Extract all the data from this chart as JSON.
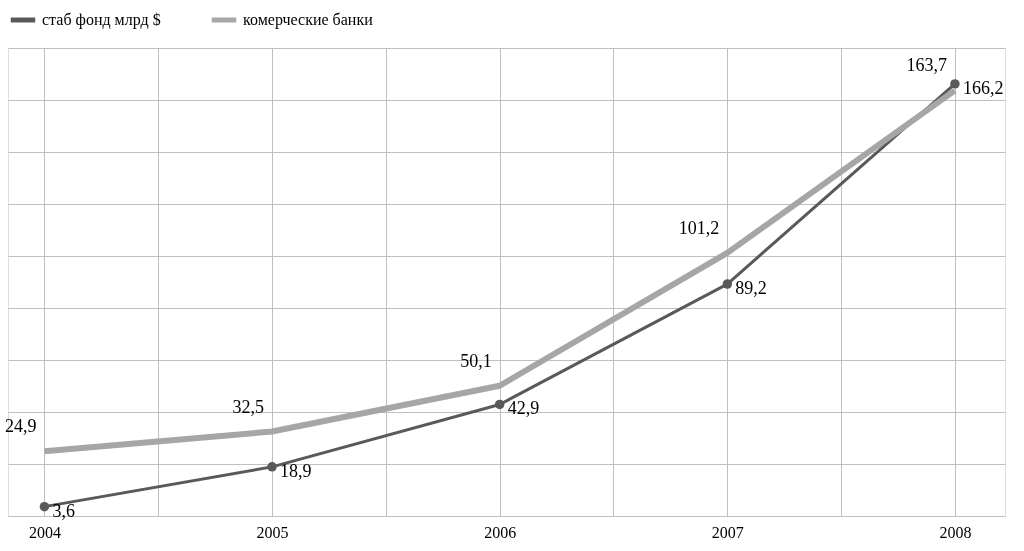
{
  "chart_data": {
    "type": "line",
    "x": [
      2004,
      2005,
      2006,
      2007,
      2008
    ],
    "xlim": [
      2003.84,
      2008.22
    ],
    "xticks": [
      2004,
      {
        "value": 2004.5,
        "label": null
      },
      2005,
      {
        "value": 2005.5,
        "label": null
      },
      2006,
      {
        "value": 2006.5,
        "label": null
      },
      2007,
      {
        "value": 2007.5,
        "label": null
      },
      2008
    ],
    "ylim": [
      0,
      180
    ],
    "yticks": [
      {
        "value": 0,
        "label": null
      },
      {
        "value": 20,
        "label": null
      },
      {
        "value": 40,
        "label": null
      },
      {
        "value": 60,
        "label": null
      },
      {
        "value": 80,
        "label": null
      },
      {
        "value": 100,
        "label": null
      },
      {
        "value": 120,
        "label": null
      },
      {
        "value": 140,
        "label": null
      },
      {
        "value": 160,
        "label": null
      },
      {
        "value": 180,
        "label": null
      }
    ],
    "tick_labels": "x",
    "grid": true,
    "legend": "top",
    "series": [
      {
        "name": "стаб фонд млрд $",
        "color": "#595959",
        "marker": "circle",
        "values": [
          3.6,
          18.9,
          42.9,
          89.2,
          166.2
        ],
        "value_labels": [
          "3,6",
          "18,9",
          "42,9",
          "89,2",
          "166,2"
        ]
      },
      {
        "name": "комерческие банки",
        "color": "#a6a6a6",
        "marker": "none",
        "values": [
          24.9,
          32.5,
          50.1,
          101.2,
          163.7
        ],
        "value_labels": [
          "24,9",
          "32,5",
          "50,1",
          "101,2",
          "163,7"
        ]
      }
    ]
  }
}
